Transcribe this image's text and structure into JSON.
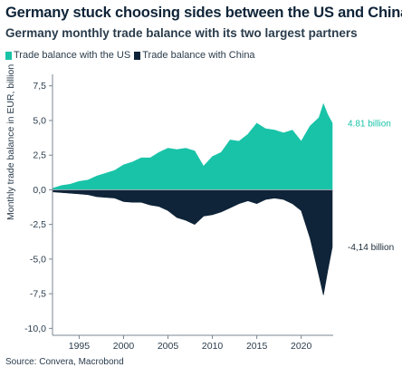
{
  "header": {
    "title": "Germany stuck choosing sides between the US and China",
    "subtitle": "Germany monthly trade balance with its two largest partners"
  },
  "source": "Source: Convera, Macrobond",
  "chart_data": {
    "type": "area",
    "title": "Germany stuck choosing sides between the US and China",
    "subtitle": "Germany monthly trade balance with its two largest partners",
    "ylabel": "Monthly trade balance in EUR, billion",
    "xlabel": "",
    "x_ticks": [
      1995,
      2000,
      2005,
      2010,
      2015,
      2020
    ],
    "xlim": [
      1992,
      2023.6
    ],
    "y_ticks": [
      -10.0,
      -7.5,
      -5.0,
      -2.5,
      0.0,
      2.5,
      5.0,
      7.5
    ],
    "y_tick_labels": [
      "-10,0",
      "-7,5",
      "-5,0",
      "-2,5",
      "0,0",
      "2,5",
      "5,0",
      "7,5"
    ],
    "ylim": [
      -10.5,
      8.2
    ],
    "legend_position": "top-left",
    "grid": false,
    "series": [
      {
        "name": "Trade balance with the US",
        "color": "#19c3a8",
        "end_label": "4.81 billion",
        "points": [
          [
            1992,
            0.1
          ],
          [
            1993,
            0.3
          ],
          [
            1994,
            0.4
          ],
          [
            1995,
            0.6
          ],
          [
            1996,
            0.7
          ],
          [
            1997,
            1.0
          ],
          [
            1998,
            1.2
          ],
          [
            1999,
            1.4
          ],
          [
            2000,
            1.8
          ],
          [
            2001,
            2.0
          ],
          [
            2002,
            2.3
          ],
          [
            2003,
            2.3
          ],
          [
            2004,
            2.7
          ],
          [
            2005,
            3.0
          ],
          [
            2006,
            2.9
          ],
          [
            2007,
            3.0
          ],
          [
            2008,
            2.8
          ],
          [
            2009,
            1.7
          ],
          [
            2010,
            2.4
          ],
          [
            2011,
            2.7
          ],
          [
            2012,
            3.6
          ],
          [
            2013,
            3.5
          ],
          [
            2014,
            4.0
          ],
          [
            2015,
            4.8
          ],
          [
            2016,
            4.4
          ],
          [
            2017,
            4.3
          ],
          [
            2018,
            4.1
          ],
          [
            2019,
            4.3
          ],
          [
            2020,
            3.5
          ],
          [
            2021,
            4.6
          ],
          [
            2022,
            5.2
          ],
          [
            2022.5,
            6.2
          ],
          [
            2023,
            5.4
          ],
          [
            2023.5,
            4.81
          ]
        ]
      },
      {
        "name": "Trade balance with China",
        "color": "#0f2438",
        "end_label": "-4,14 billion",
        "points": [
          [
            1992,
            -0.15
          ],
          [
            1993,
            -0.2
          ],
          [
            1994,
            -0.25
          ],
          [
            1995,
            -0.3
          ],
          [
            1996,
            -0.35
          ],
          [
            1997,
            -0.5
          ],
          [
            1998,
            -0.55
          ],
          [
            1999,
            -0.6
          ],
          [
            2000,
            -0.85
          ],
          [
            2001,
            -0.9
          ],
          [
            2002,
            -0.9
          ],
          [
            2003,
            -1.1
          ],
          [
            2004,
            -1.2
          ],
          [
            2005,
            -1.5
          ],
          [
            2006,
            -2.0
          ],
          [
            2007,
            -2.2
          ],
          [
            2008,
            -2.5
          ],
          [
            2009,
            -1.9
          ],
          [
            2010,
            -1.8
          ],
          [
            2011,
            -1.6
          ],
          [
            2012,
            -1.3
          ],
          [
            2013,
            -1.0
          ],
          [
            2014,
            -0.8
          ],
          [
            2015,
            -1.0
          ],
          [
            2016,
            -0.7
          ],
          [
            2017,
            -0.6
          ],
          [
            2018,
            -0.7
          ],
          [
            2019,
            -1.0
          ],
          [
            2020,
            -1.5
          ],
          [
            2021,
            -3.5
          ],
          [
            2022,
            -6.2
          ],
          [
            2022.5,
            -7.6
          ],
          [
            2023,
            -5.8
          ],
          [
            2023.5,
            -4.14
          ]
        ]
      }
    ]
  }
}
